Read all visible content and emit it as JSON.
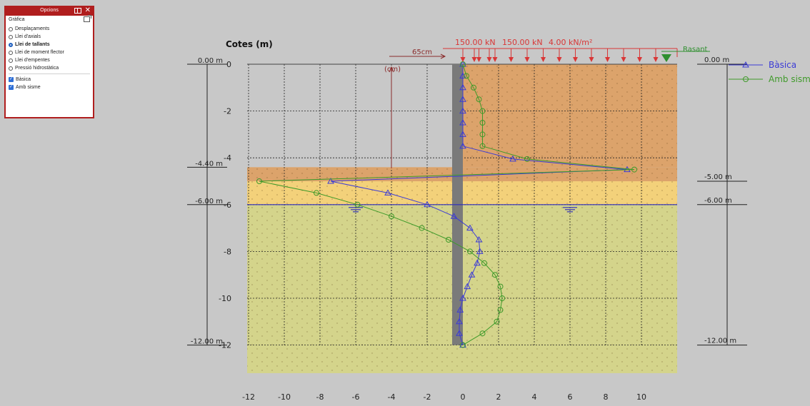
{
  "options_panel": {
    "title": "Opcions",
    "section_label": "Gràfica",
    "radio_items": [
      {
        "label": "Desplaçaments",
        "selected": false
      },
      {
        "label": "Llei d'axials",
        "selected": false
      },
      {
        "label": "Llei de tallants",
        "selected": true
      },
      {
        "label": "Llei de moment flector",
        "selected": false
      },
      {
        "label": "Llei d'empentes",
        "selected": false
      },
      {
        "label": "Pressió hidrostàtica",
        "selected": false
      }
    ],
    "check_items": [
      {
        "label": "Bàsica",
        "checked": true
      },
      {
        "label": "Amb sisme",
        "checked": true
      }
    ]
  },
  "colors": {
    "background": "#c8c8c8",
    "soil_top": "#dca36b",
    "soil_mid": "#f3d17a",
    "soil_bottom": "#d4d48b",
    "wall": "#7a7a7a",
    "basica": "#3b3bd6",
    "amb_sisme": "#3f9a2a",
    "load": "#d93636",
    "ground_marker": "#2f8f2f",
    "water": "#2d2dbf"
  },
  "chart_data": {
    "type": "line",
    "ylabel": "Cotes (m)",
    "xlabel": "(cm)",
    "xlim": [
      -12,
      12
    ],
    "ylim": [
      -13.2,
      0
    ],
    "x_ticks": [
      "-12",
      "-10",
      "-8",
      "-6",
      "-4",
      "-2",
      "0",
      "2",
      "4",
      "6",
      "8",
      "10"
    ],
    "y_ticks": [
      "0",
      "-2",
      "-4",
      "-6",
      "-8",
      "-10",
      "-12"
    ],
    "grid": true,
    "legend_position": "right",
    "series": [
      {
        "name": "Bàsica",
        "marker": "triangle",
        "x": [
          0,
          0,
          0,
          0,
          0,
          0,
          0,
          0,
          2.8,
          9.2,
          -7.4,
          -4.2,
          -2.0,
          -0.5,
          0.4,
          0.9,
          0.95,
          0.8,
          0.5,
          0.25,
          0,
          -0.15,
          -0.2,
          -0.2,
          0
        ],
        "y": [
          0,
          -0.5,
          -1.0,
          -1.5,
          -2.0,
          -2.5,
          -3.0,
          -3.5,
          -4.05,
          -4.5,
          -5.0,
          -5.5,
          -6.0,
          -6.5,
          -7.0,
          -7.5,
          -8.0,
          -8.5,
          -9.0,
          -9.5,
          -10.0,
          -10.5,
          -11.0,
          -11.5,
          -12.0
        ]
      },
      {
        "name": "Amb sisme",
        "marker": "circle",
        "x": [
          0,
          0.2,
          0.6,
          0.9,
          1.1,
          1.1,
          1.1,
          1.1,
          3.6,
          9.6,
          -11.4,
          -8.2,
          -5.9,
          -4.0,
          -2.3,
          -0.8,
          0.4,
          1.2,
          1.8,
          2.1,
          2.2,
          2.1,
          1.9,
          1.1,
          0
        ],
        "y": [
          0,
          -0.5,
          -1.0,
          -1.5,
          -2.0,
          -2.5,
          -3.0,
          -3.5,
          -4.05,
          -4.5,
          -5.0,
          -5.5,
          -6.0,
          -6.5,
          -7.0,
          -7.5,
          -8.0,
          -8.5,
          -9.0,
          -9.5,
          -10.0,
          -10.5,
          -11.0,
          -11.5,
          -12.0
        ]
      }
    ],
    "left_levels": [
      {
        "label": "0.00 m",
        "y": 0
      },
      {
        "label": "-4.40 m",
        "y": -4.4
      },
      {
        "label": "-6.00 m",
        "y": -6.0
      },
      {
        "label": "-12.00 m",
        "y": -12.0
      }
    ],
    "right_levels": [
      {
        "label": "0.00 m",
        "y": 0
      },
      {
        "label": "-5.00 m",
        "y": -5.0
      },
      {
        "label": "-6.00 m",
        "y": -6.0
      },
      {
        "label": "-12.00 m",
        "y": -12.0
      }
    ],
    "soil_layers": [
      {
        "top": 0,
        "bottom": -4.4,
        "name": "top"
      },
      {
        "top": -4.4,
        "bottom": -5.0,
        "name": "top-left-extension"
      },
      {
        "top": -5.0,
        "bottom": -6.0,
        "name": "mid"
      },
      {
        "top": -6.0,
        "bottom": -13.2,
        "name": "bottom"
      }
    ],
    "water_level": -6.0,
    "wall": {
      "x_left": -0.6,
      "x_right": 0,
      "bottom": -12.0
    },
    "wall_thickness_label": "65cm",
    "loads": [
      "150.00 kN",
      "150.00 kN",
      "4.00 kN/m²"
    ],
    "ground_label": "Rasant"
  }
}
